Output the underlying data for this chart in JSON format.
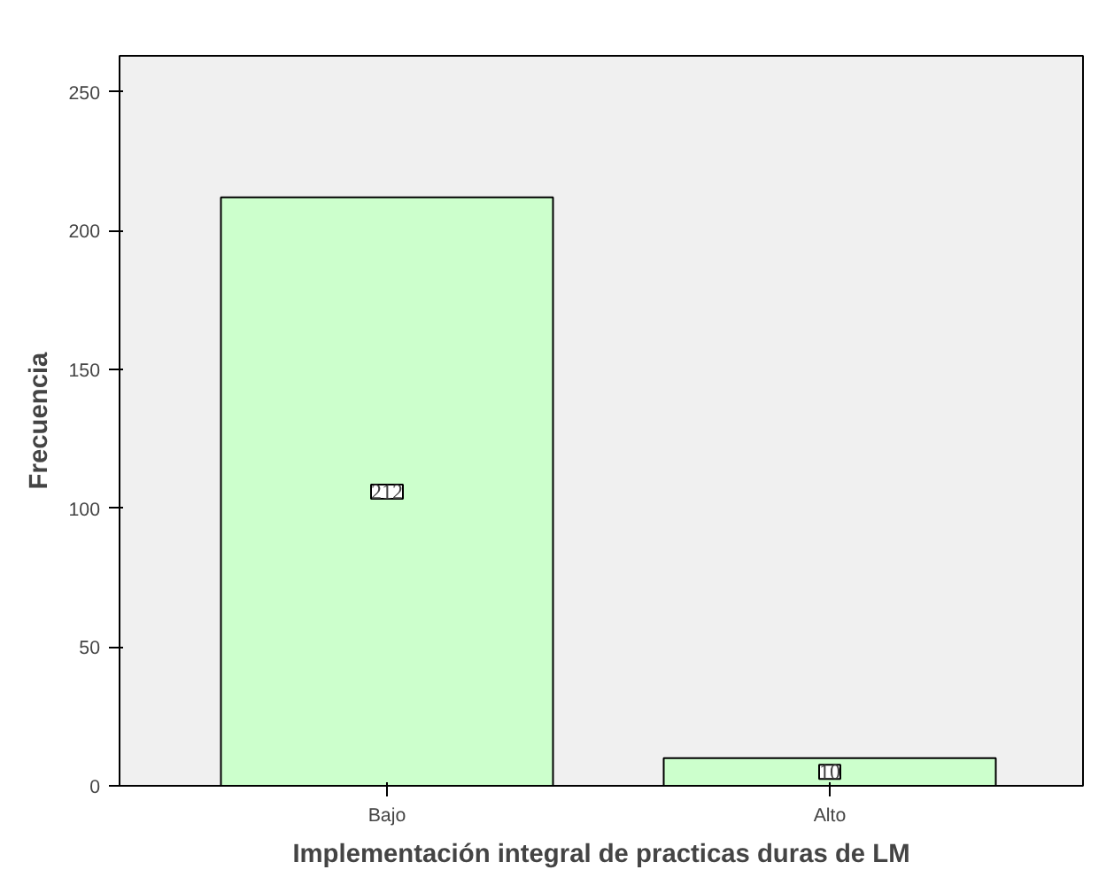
{
  "chart_data": {
    "type": "bar",
    "xlabel": "Implementación integral de practicas duras de LM",
    "ylabel": "Frecuencia",
    "categories": [
      "Bajo",
      "Alto"
    ],
    "values": [
      212,
      10
    ],
    "color": "#ccffcc",
    "ylim": [
      0,
      263
    ],
    "yticks": [
      0,
      50,
      100,
      150,
      200,
      250
    ],
    "grid": false,
    "data_labels": true
  }
}
